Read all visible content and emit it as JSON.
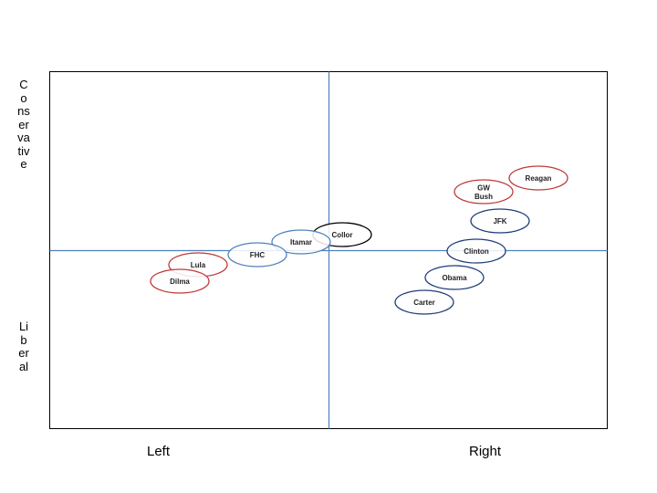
{
  "axes": {
    "y_top_label": "Conservative",
    "y_bottom_label": "Liberal",
    "x_left_label": "Left",
    "x_right_label": "Right"
  },
  "colors": {
    "red": "#c0393b",
    "blue_light": "#4f81bd",
    "blue_dark": "#1f3d7a",
    "black": "#000000",
    "axis_line": "#4f81bd"
  },
  "figures": [
    {
      "id": "reagan",
      "lines": [
        "Reagan"
      ],
      "color": "red"
    },
    {
      "id": "gwbush",
      "lines": [
        "GW",
        "Bush"
      ],
      "color": "red"
    },
    {
      "id": "jfk",
      "lines": [
        "JFK"
      ],
      "color": "blue_dark"
    },
    {
      "id": "clinton",
      "lines": [
        "Clinton"
      ],
      "color": "blue_dark"
    },
    {
      "id": "obama",
      "lines": [
        "Obama"
      ],
      "color": "blue_dark"
    },
    {
      "id": "carter",
      "lines": [
        "Carter"
      ],
      "color": "blue_dark"
    },
    {
      "id": "collor",
      "lines": [
        "Collor"
      ],
      "color": "black"
    },
    {
      "id": "itamar",
      "lines": [
        "Itamar"
      ],
      "color": "blue_light"
    },
    {
      "id": "fhc",
      "lines": [
        "FHC"
      ],
      "color": "blue_light"
    },
    {
      "id": "lula",
      "lines": [
        "Lula"
      ],
      "color": "red"
    },
    {
      "id": "dilma",
      "lines": [
        "Dilma"
      ],
      "color": "red"
    }
  ]
}
